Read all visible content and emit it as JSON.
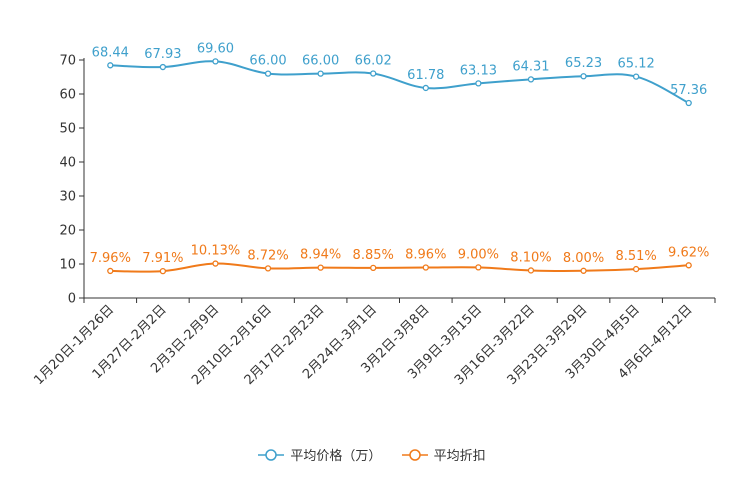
{
  "chart_data": {
    "type": "line",
    "categories": [
      "1月20日-1月26日",
      "1月27日-2月2日",
      "2月3日-2月9日",
      "2月10日-2月16日",
      "2月17日-2月23日",
      "2月24日-3月1日",
      "3月2日-3月8日",
      "3月9日-3月15日",
      "3月16日-3月22日",
      "3月23日-3月29日",
      "3月30日-4月5日",
      "4月6日-4月12日"
    ],
    "series": [
      {
        "name": "平均价格（万）",
        "color": "#3fa0cc",
        "values": [
          68.44,
          67.93,
          69.6,
          66.0,
          66.0,
          66.02,
          61.78,
          63.13,
          64.31,
          65.23,
          65.12,
          57.36
        ],
        "labels": [
          "68.44",
          "67.93",
          "69.60",
          "66.00",
          "66.00",
          "66.02",
          "61.78",
          "63.13",
          "64.31",
          "65.23",
          "65.12",
          "57.36"
        ]
      },
      {
        "name": "平均折扣",
        "color": "#f07a1a",
        "values": [
          7.96,
          7.91,
          10.13,
          8.72,
          8.94,
          8.85,
          8.96,
          9.0,
          8.1,
          8.0,
          8.51,
          9.62
        ],
        "labels": [
          "7.96%",
          "7.91%",
          "10.13%",
          "8.72%",
          "8.94%",
          "8.85%",
          "8.96%",
          "9.00%",
          "8.10%",
          "8.00%",
          "8.51%",
          "9.62%"
        ]
      }
    ],
    "yticks": [
      "0",
      "10",
      "20",
      "30",
      "40",
      "50",
      "60",
      "70"
    ],
    "ylim": [
      0,
      70
    ],
    "title": "",
    "xlabel": "",
    "ylabel": "",
    "grid": false,
    "legend_position": "bottom-center"
  }
}
